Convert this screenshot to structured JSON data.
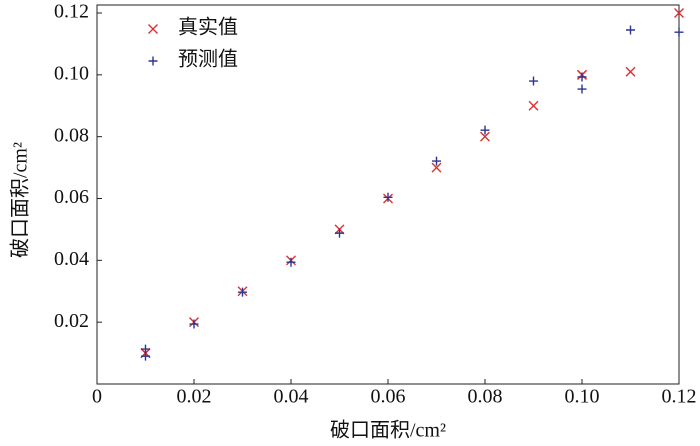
{
  "chart_data": {
    "type": "scatter",
    "xlabel": "破口面积/cm²",
    "ylabel": "破口面积/cm²",
    "xlim": [
      0,
      0.12
    ],
    "ylim": [
      0,
      0.12
    ],
    "xticks": [
      0,
      0.02,
      0.04,
      0.06,
      0.08,
      {
        "value": 0.1,
        "label": "0.10"
      },
      0.12
    ],
    "yticks": [
      0.02,
      0.04,
      0.06,
      0.08,
      {
        "value": 0.1,
        "label": "0.10"
      },
      0.12
    ],
    "legend": "upper-left",
    "series": [
      {
        "name": "真实值",
        "color": "#e03030",
        "marker": "x",
        "x": [
          0.01,
          0.01,
          0.02,
          0.03,
          0.04,
          0.05,
          0.06,
          0.07,
          0.08,
          0.09,
          0.1,
          0.1,
          0.11,
          0.12
        ],
        "values": [
          0.01,
          0.01,
          0.02,
          0.03,
          0.04,
          0.05,
          0.06,
          0.07,
          0.08,
          0.09,
          0.1,
          0.1,
          0.101,
          0.12
        ]
      },
      {
        "name": "预测值",
        "color": "#2a3590",
        "marker": "+",
        "x": [
          0.01,
          0.01,
          0.02,
          0.03,
          0.04,
          0.05,
          0.06,
          0.07,
          0.08,
          0.09,
          0.1,
          0.1,
          0.11,
          0.12
        ],
        "values": [
          0.0113,
          0.009,
          0.0194,
          0.0297,
          0.0394,
          0.0488,
          0.0604,
          0.0721,
          0.0821,
          0.098,
          0.0993,
          0.0954,
          0.1145,
          0.1138
        ]
      }
    ]
  }
}
